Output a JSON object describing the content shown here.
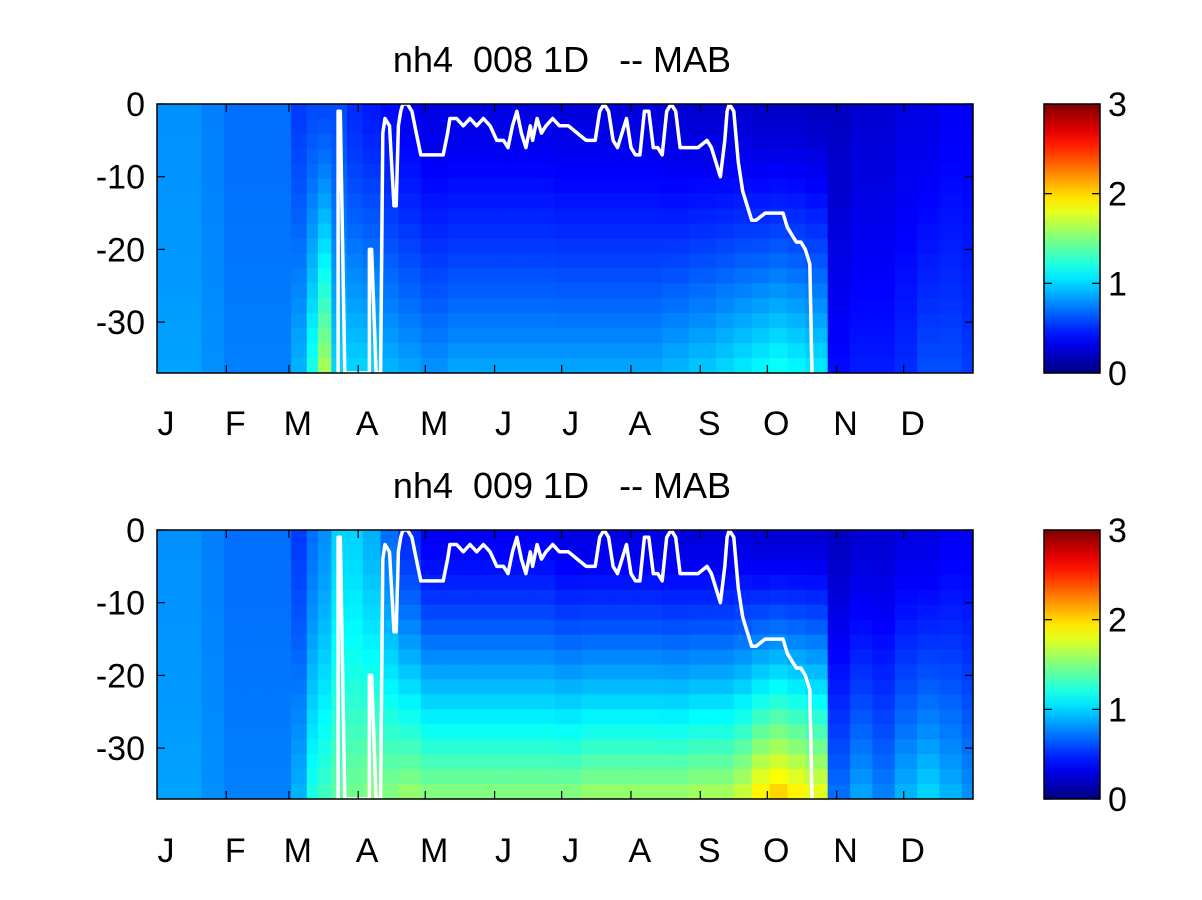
{
  "chart_data": [
    {
      "type": "heatmap",
      "title": "nh4  008 1D   -- MAB",
      "xlabel": "",
      "ylabel": "",
      "x_ticks": [
        "J",
        "F",
        "M",
        "A",
        "M",
        "J",
        "J",
        "A",
        "S",
        "O",
        "N",
        "D"
      ],
      "y_ticks": [
        "0",
        "-10",
        "-20",
        "-30"
      ],
      "xlim": [
        0,
        365
      ],
      "ylim": [
        -37,
        0
      ],
      "colorbar": {
        "ticks": [
          "0",
          "1",
          "2",
          "3"
        ],
        "range": [
          0,
          3
        ],
        "colormap": "jet"
      },
      "grid": false,
      "heat_columns": [
        {
          "day": 0,
          "surface": 0.8,
          "bottom": 0.85
        },
        {
          "day": 10,
          "surface": 0.8,
          "bottom": 0.85
        },
        {
          "day": 20,
          "surface": 0.75,
          "bottom": 0.8
        },
        {
          "day": 30,
          "surface": 0.7,
          "bottom": 0.75
        },
        {
          "day": 40,
          "surface": 0.7,
          "bottom": 0.75
        },
        {
          "day": 50,
          "surface": 0.7,
          "bottom": 0.75
        },
        {
          "day": 60,
          "surface": 0.55,
          "bottom": 0.9
        },
        {
          "day": 67,
          "surface": 0.6,
          "bottom": 1.2
        },
        {
          "day": 72,
          "surface": 0.6,
          "bottom": 1.6
        },
        {
          "day": 78,
          "surface": 0.6,
          "bottom": 1.0
        },
        {
          "day": 85,
          "surface": 0.5,
          "bottom": 1.0
        },
        {
          "day": 92,
          "surface": 0.45,
          "bottom": 1.0
        },
        {
          "day": 100,
          "surface": 0.4,
          "bottom": 0.9
        },
        {
          "day": 108,
          "surface": 0.35,
          "bottom": 0.85
        },
        {
          "day": 118,
          "surface": 0.3,
          "bottom": 0.8
        },
        {
          "day": 130,
          "surface": 0.3,
          "bottom": 0.85
        },
        {
          "day": 142,
          "surface": 0.3,
          "bottom": 0.85
        },
        {
          "day": 154,
          "surface": 0.3,
          "bottom": 0.85
        },
        {
          "day": 166,
          "surface": 0.3,
          "bottom": 0.85
        },
        {
          "day": 178,
          "surface": 0.28,
          "bottom": 0.85
        },
        {
          "day": 190,
          "surface": 0.28,
          "bottom": 0.85
        },
        {
          "day": 202,
          "surface": 0.28,
          "bottom": 0.85
        },
        {
          "day": 214,
          "surface": 0.28,
          "bottom": 0.85
        },
        {
          "day": 226,
          "surface": 0.25,
          "bottom": 0.9
        },
        {
          "day": 238,
          "surface": 0.25,
          "bottom": 0.95
        },
        {
          "day": 250,
          "surface": 0.25,
          "bottom": 1.0
        },
        {
          "day": 258,
          "surface": 0.25,
          "bottom": 1.05
        },
        {
          "day": 266,
          "surface": 0.22,
          "bottom": 1.1
        },
        {
          "day": 274,
          "surface": 0.22,
          "bottom": 1.15
        },
        {
          "day": 282,
          "surface": 0.22,
          "bottom": 1.1
        },
        {
          "day": 290,
          "surface": 0.2,
          "bottom": 1.05
        },
        {
          "day": 300,
          "surface": 0.2,
          "bottom": 0.4
        },
        {
          "day": 310,
          "surface": 0.25,
          "bottom": 0.45
        },
        {
          "day": 320,
          "surface": 0.25,
          "bottom": 0.45
        },
        {
          "day": 330,
          "surface": 0.3,
          "bottom": 0.5
        },
        {
          "day": 340,
          "surface": 0.3,
          "bottom": 0.6
        },
        {
          "day": 350,
          "surface": 0.35,
          "bottom": 0.6
        },
        {
          "day": 360,
          "surface": 0.35,
          "bottom": 0.55
        },
        {
          "day": 365,
          "surface": 0.35,
          "bottom": 0.55
        }
      ],
      "overlay_line": {
        "color": "#ffffff",
        "points": [
          [
            81,
            -37
          ],
          [
            81,
            -1
          ],
          [
            82,
            -1
          ],
          [
            84,
            -37
          ],
          [
            95,
            -37
          ],
          [
            95,
            -20
          ],
          [
            96,
            -20
          ],
          [
            98,
            -37
          ],
          [
            100,
            -37
          ],
          [
            101,
            -4
          ],
          [
            102,
            -2
          ],
          [
            104,
            -3
          ],
          [
            106,
            -14
          ],
          [
            107,
            -14
          ],
          [
            108,
            -3
          ],
          [
            109,
            -1
          ],
          [
            110,
            0
          ],
          [
            112,
            0
          ],
          [
            114,
            -1
          ],
          [
            116,
            -4
          ],
          [
            118,
            -7
          ],
          [
            128,
            -7
          ],
          [
            130,
            -4
          ],
          [
            131,
            -2
          ],
          [
            134,
            -2
          ],
          [
            137,
            -3
          ],
          [
            140,
            -2
          ],
          [
            143,
            -3
          ],
          [
            146,
            -2
          ],
          [
            149,
            -3
          ],
          [
            152,
            -5
          ],
          [
            155,
            -5
          ],
          [
            157,
            -6
          ],
          [
            159,
            -3
          ],
          [
            161,
            -1
          ],
          [
            163,
            -4
          ],
          [
            165,
            -6
          ],
          [
            167,
            -3
          ],
          [
            168,
            -5
          ],
          [
            170,
            -2
          ],
          [
            172,
            -4
          ],
          [
            174,
            -3
          ],
          [
            177,
            -2
          ],
          [
            180,
            -3
          ],
          [
            184,
            -3
          ],
          [
            188,
            -4
          ],
          [
            192,
            -5
          ],
          [
            196,
            -5
          ],
          [
            198,
            -1
          ],
          [
            200,
            0
          ],
          [
            202,
            -1
          ],
          [
            204,
            -5
          ],
          [
            206,
            -6
          ],
          [
            208,
            -4
          ],
          [
            210,
            -2
          ],
          [
            212,
            -6
          ],
          [
            214,
            -7
          ],
          [
            216,
            -7
          ],
          [
            218,
            -1
          ],
          [
            220,
            -1
          ],
          [
            222,
            -6
          ],
          [
            224,
            -6
          ],
          [
            226,
            -7
          ],
          [
            228,
            -1
          ],
          [
            230,
            0
          ],
          [
            232,
            -1
          ],
          [
            234,
            -6
          ],
          [
            238,
            -6
          ],
          [
            242,
            -6
          ],
          [
            246,
            -5
          ],
          [
            248,
            -6
          ],
          [
            250,
            -8
          ],
          [
            252,
            -10
          ],
          [
            254,
            -5
          ],
          [
            255,
            -1
          ],
          [
            256,
            0
          ],
          [
            258,
            -1
          ],
          [
            260,
            -8
          ],
          [
            262,
            -12
          ],
          [
            264,
            -14
          ],
          [
            266,
            -16
          ],
          [
            268,
            -16
          ],
          [
            272,
            -15
          ],
          [
            276,
            -15
          ],
          [
            280,
            -15
          ],
          [
            282,
            -17
          ],
          [
            284,
            -18
          ],
          [
            286,
            -19
          ],
          [
            288,
            -19
          ],
          [
            290,
            -20
          ],
          [
            292,
            -22
          ],
          [
            293,
            -37
          ]
        ]
      }
    },
    {
      "type": "heatmap",
      "title": "nh4  009 1D   -- MAB",
      "xlabel": "",
      "ylabel": "",
      "x_ticks": [
        "J",
        "F",
        "M",
        "A",
        "M",
        "J",
        "J",
        "A",
        "S",
        "O",
        "N",
        "D"
      ],
      "y_ticks": [
        "0",
        "-10",
        "-20",
        "-30"
      ],
      "xlim": [
        0,
        365
      ],
      "ylim": [
        -37,
        0
      ],
      "colorbar": {
        "ticks": [
          "0",
          "1",
          "2",
          "3"
        ],
        "range": [
          0,
          3
        ],
        "colormap": "jet"
      },
      "grid": false,
      "heat_columns": [
        {
          "day": 0,
          "surface": 0.8,
          "bottom": 0.85
        },
        {
          "day": 10,
          "surface": 0.8,
          "bottom": 0.85
        },
        {
          "day": 20,
          "surface": 0.75,
          "bottom": 0.8
        },
        {
          "day": 30,
          "surface": 0.7,
          "bottom": 0.75
        },
        {
          "day": 40,
          "surface": 0.7,
          "bottom": 0.75
        },
        {
          "day": 50,
          "surface": 0.7,
          "bottom": 0.75
        },
        {
          "day": 60,
          "surface": 0.55,
          "bottom": 0.9
        },
        {
          "day": 67,
          "surface": 0.7,
          "bottom": 1.2
        },
        {
          "day": 72,
          "surface": 0.8,
          "bottom": 1.3
        },
        {
          "day": 78,
          "surface": 1.0,
          "bottom": 1.4
        },
        {
          "day": 85,
          "surface": 1.0,
          "bottom": 1.45
        },
        {
          "day": 92,
          "surface": 0.9,
          "bottom": 1.5
        },
        {
          "day": 100,
          "surface": 0.7,
          "bottom": 1.5
        },
        {
          "day": 108,
          "surface": 0.5,
          "bottom": 1.55
        },
        {
          "day": 118,
          "surface": 0.35,
          "bottom": 1.5
        },
        {
          "day": 130,
          "surface": 0.35,
          "bottom": 1.5
        },
        {
          "day": 142,
          "surface": 0.35,
          "bottom": 1.5
        },
        {
          "day": 154,
          "surface": 0.35,
          "bottom": 1.5
        },
        {
          "day": 166,
          "surface": 0.35,
          "bottom": 1.5
        },
        {
          "day": 178,
          "surface": 0.3,
          "bottom": 1.5
        },
        {
          "day": 190,
          "surface": 0.3,
          "bottom": 1.55
        },
        {
          "day": 202,
          "surface": 0.3,
          "bottom": 1.55
        },
        {
          "day": 214,
          "surface": 0.3,
          "bottom": 1.55
        },
        {
          "day": 226,
          "surface": 0.28,
          "bottom": 1.55
        },
        {
          "day": 238,
          "surface": 0.28,
          "bottom": 1.6
        },
        {
          "day": 250,
          "surface": 0.28,
          "bottom": 1.6
        },
        {
          "day": 258,
          "surface": 0.28,
          "bottom": 1.7
        },
        {
          "day": 266,
          "surface": 0.25,
          "bottom": 1.9
        },
        {
          "day": 274,
          "surface": 0.25,
          "bottom": 2.0
        },
        {
          "day": 282,
          "surface": 0.25,
          "bottom": 1.9
        },
        {
          "day": 290,
          "surface": 0.25,
          "bottom": 1.8
        },
        {
          "day": 300,
          "surface": 0.2,
          "bottom": 0.7
        },
        {
          "day": 310,
          "surface": 0.25,
          "bottom": 0.85
        },
        {
          "day": 320,
          "surface": 0.25,
          "bottom": 0.75
        },
        {
          "day": 330,
          "surface": 0.3,
          "bottom": 0.9
        },
        {
          "day": 340,
          "surface": 0.3,
          "bottom": 1.0
        },
        {
          "day": 350,
          "surface": 0.35,
          "bottom": 0.9
        },
        {
          "day": 360,
          "surface": 0.35,
          "bottom": 0.8
        },
        {
          "day": 365,
          "surface": 0.35,
          "bottom": 0.8
        }
      ],
      "overlay_line": {
        "color": "#ffffff",
        "points": [
          [
            81,
            -37
          ],
          [
            81,
            -1
          ],
          [
            82,
            -1
          ],
          [
            84,
            -37
          ],
          [
            95,
            -37
          ],
          [
            95,
            -20
          ],
          [
            96,
            -20
          ],
          [
            98,
            -37
          ],
          [
            100,
            -37
          ],
          [
            101,
            -4
          ],
          [
            102,
            -2
          ],
          [
            104,
            -3
          ],
          [
            106,
            -14
          ],
          [
            107,
            -14
          ],
          [
            108,
            -3
          ],
          [
            109,
            -1
          ],
          [
            110,
            0
          ],
          [
            112,
            0
          ],
          [
            114,
            -1
          ],
          [
            116,
            -4
          ],
          [
            118,
            -7
          ],
          [
            128,
            -7
          ],
          [
            130,
            -4
          ],
          [
            131,
            -2
          ],
          [
            134,
            -2
          ],
          [
            137,
            -3
          ],
          [
            140,
            -2
          ],
          [
            143,
            -3
          ],
          [
            146,
            -2
          ],
          [
            149,
            -3
          ],
          [
            152,
            -5
          ],
          [
            155,
            -5
          ],
          [
            157,
            -6
          ],
          [
            159,
            -3
          ],
          [
            161,
            -1
          ],
          [
            163,
            -4
          ],
          [
            165,
            -6
          ],
          [
            167,
            -3
          ],
          [
            168,
            -5
          ],
          [
            170,
            -2
          ],
          [
            172,
            -4
          ],
          [
            174,
            -3
          ],
          [
            177,
            -2
          ],
          [
            180,
            -3
          ],
          [
            184,
            -3
          ],
          [
            188,
            -4
          ],
          [
            192,
            -5
          ],
          [
            196,
            -5
          ],
          [
            198,
            -1
          ],
          [
            200,
            0
          ],
          [
            202,
            -1
          ],
          [
            204,
            -5
          ],
          [
            206,
            -6
          ],
          [
            208,
            -4
          ],
          [
            210,
            -2
          ],
          [
            212,
            -6
          ],
          [
            214,
            -7
          ],
          [
            216,
            -7
          ],
          [
            218,
            -1
          ],
          [
            220,
            -1
          ],
          [
            222,
            -6
          ],
          [
            224,
            -6
          ],
          [
            226,
            -7
          ],
          [
            228,
            -1
          ],
          [
            230,
            0
          ],
          [
            232,
            -1
          ],
          [
            234,
            -6
          ],
          [
            238,
            -6
          ],
          [
            242,
            -6
          ],
          [
            246,
            -5
          ],
          [
            248,
            -6
          ],
          [
            250,
            -8
          ],
          [
            252,
            -10
          ],
          [
            254,
            -5
          ],
          [
            255,
            -1
          ],
          [
            256,
            0
          ],
          [
            258,
            -1
          ],
          [
            260,
            -8
          ],
          [
            262,
            -12
          ],
          [
            264,
            -14
          ],
          [
            266,
            -16
          ],
          [
            268,
            -16
          ],
          [
            272,
            -15
          ],
          [
            276,
            -15
          ],
          [
            280,
            -15
          ],
          [
            282,
            -17
          ],
          [
            284,
            -18
          ],
          [
            286,
            -19
          ],
          [
            288,
            -19
          ],
          [
            290,
            -20
          ],
          [
            292,
            -22
          ],
          [
            293,
            -37
          ]
        ]
      }
    }
  ]
}
